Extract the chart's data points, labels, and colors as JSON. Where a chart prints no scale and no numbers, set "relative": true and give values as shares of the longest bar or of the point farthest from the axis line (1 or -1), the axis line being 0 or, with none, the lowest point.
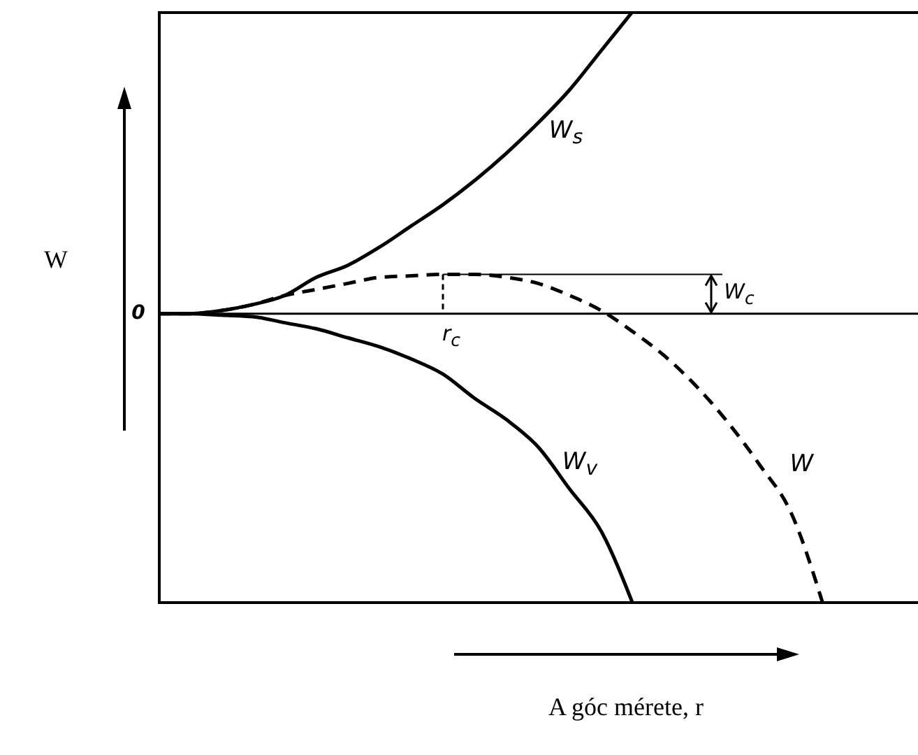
{
  "chart_data": {
    "type": "line",
    "relative": true,
    "xlabel": "A góc mérete, r",
    "ylabel": "W",
    "categories": [
      null,
      null,
      null,
      null,
      null,
      null,
      null,
      null,
      null,
      null,
      null,
      null,
      null,
      null,
      null,
      null,
      null,
      null,
      null,
      null,
      null,
      null,
      null,
      null,
      null
    ],
    "series": [
      {
        "name": "W$_{s}$",
        "color": "#000000",
        "line_style": "solid",
        "values": [
          0,
          0,
          0.01,
          0.03,
          0.06,
          0.12,
          0.16,
          0.22,
          0.29,
          0.36,
          0.44,
          0.53,
          0.63,
          0.74,
          0.87,
          1,
          null,
          null,
          null,
          null,
          null,
          null,
          null,
          null,
          null
        ]
      },
      {
        "name": "W$_{v}$",
        "color": "#000000",
        "line_style": "solid",
        "values": [
          0,
          0,
          -0.005,
          -0.01,
          -0.03,
          -0.05,
          -0.08,
          -0.11,
          -0.15,
          -0.2,
          -0.28,
          -0.35,
          -0.44,
          -0.58,
          -0.72,
          -0.96,
          null,
          null,
          null,
          null,
          null,
          null,
          null,
          null,
          null
        ]
      },
      {
        "name": "W",
        "color": "#000000",
        "line_style": "dashed",
        "values": [
          0,
          0,
          0.01,
          0.03,
          0.06,
          0.08,
          0.1,
          0.12,
          0.125,
          0.13,
          0.13,
          0.12,
          0.1,
          0.06,
          0.01,
          -0.06,
          -0.14,
          -0.24,
          -0.36,
          -0.5,
          -0.66,
          -0.96,
          null,
          null,
          null
        ]
      }
    ],
    "annotations": [
      "W$_{c}$",
      "r$_{c}$",
      "0"
    ],
    "marker": "none",
    "grid": false
  }
}
